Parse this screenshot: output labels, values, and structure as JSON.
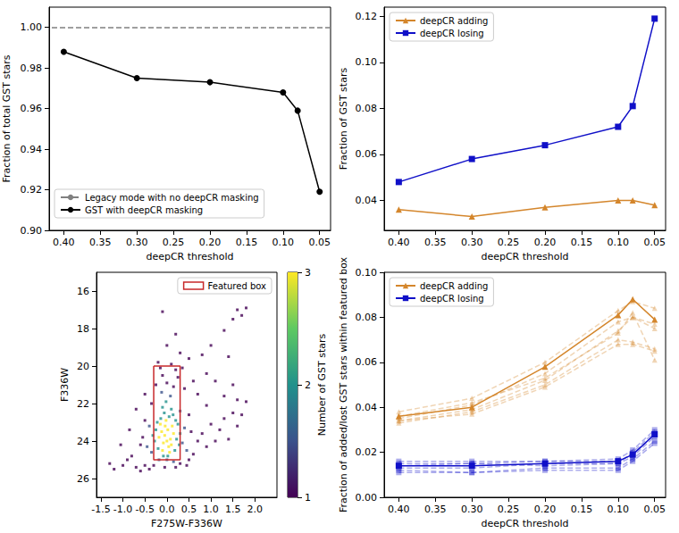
{
  "chart_data": [
    {
      "type": "line",
      "x_label": "deepCR threshold",
      "y_label": "Fraction of total GST stars",
      "x": [
        0.4,
        0.3,
        0.2,
        0.1,
        0.08,
        0.05
      ],
      "xlim": [
        0.42,
        0.035
      ],
      "xticks": [
        {
          "value": 0.4,
          "label": "0.40"
        },
        0.35,
        {
          "value": 0.3,
          "label": "0.30"
        },
        0.25,
        {
          "value": 0.2,
          "label": "0.20"
        },
        0.15,
        {
          "value": 0.1,
          "label": "0.10"
        },
        0.05
      ],
      "ylim": [
        0.9,
        1.01
      ],
      "yticks": [
        {
          "value": 0.9,
          "label": "0.90"
        },
        0.92,
        0.94,
        0.96,
        0.98,
        {
          "value": 1.0,
          "label": "1.00"
        }
      ],
      "grid": false,
      "legend": "lower left",
      "series": [
        {
          "name": "Legacy mode with no deepCR masking",
          "type": "hline",
          "value": 1.0,
          "color": "#808080",
          "line_style": "dashed"
        },
        {
          "name": "GST with deepCR masking",
          "color": "#000000",
          "marker": "circle",
          "line_style": "solid",
          "values": [
            0.988,
            0.975,
            0.973,
            0.968,
            0.959,
            0.919
          ]
        }
      ]
    },
    {
      "type": "line",
      "x_label": "deepCR threshold",
      "y_label": "Fraction of GST stars",
      "x": [
        0.4,
        0.3,
        0.2,
        0.1,
        0.08,
        0.05
      ],
      "xlim": [
        0.42,
        0.035
      ],
      "xticks": [
        {
          "value": 0.4,
          "label": "0.40"
        },
        0.35,
        {
          "value": 0.3,
          "label": "0.30"
        },
        0.25,
        {
          "value": 0.2,
          "label": "0.20"
        },
        0.15,
        {
          "value": 0.1,
          "label": "0.10"
        },
        0.05
      ],
      "ylim": [
        0.027,
        0.124
      ],
      "yticks": [
        0.04,
        0.06,
        0.08,
        {
          "value": 0.1,
          "label": "0.10"
        },
        0.12
      ],
      "grid": false,
      "legend": "upper left",
      "series": [
        {
          "name": "deepCR adding",
          "color": "#d4862c",
          "marker": "triangle",
          "line_style": "solid",
          "values": [
            0.036,
            0.033,
            0.037,
            0.04,
            0.04,
            0.038
          ]
        },
        {
          "name": "deepCR losing",
          "color": "#1010c8",
          "marker": "square",
          "line_style": "solid",
          "values": [
            0.048,
            0.058,
            0.064,
            0.072,
            0.081,
            0.119
          ]
        }
      ]
    },
    {
      "type": "scatter",
      "x_label": "F275W-F336W",
      "y_label": "F336W",
      "xlim": [
        -1.6,
        2.5
      ],
      "xticks": [
        -1.5,
        {
          "value": -1.0,
          "label": "-1.0"
        },
        -0.5,
        {
          "value": 0.0,
          "label": "0.0"
        },
        0.5,
        {
          "value": 1.0,
          "label": "1.0"
        },
        1.5,
        {
          "value": 2.0,
          "label": "2.0"
        }
      ],
      "ylim": [
        27,
        15
      ],
      "yticks": [
        16,
        18,
        20,
        22,
        24,
        26
      ],
      "grid": false,
      "legend": "upper right",
      "colorbar": {
        "label": "Number of GST stars",
        "range": [
          1,
          3
        ],
        "ticks": [
          1,
          2,
          3
        ]
      },
      "cells": [
        [
          -0.12,
          23.5,
          3
        ],
        [
          -0.05,
          23.7,
          3
        ],
        [
          0.02,
          23.4,
          3
        ],
        [
          0.08,
          23.9,
          3
        ],
        [
          -0.08,
          24.1,
          3
        ],
        [
          0.04,
          24.3,
          3
        ],
        [
          -0.15,
          23.1,
          3
        ],
        [
          0.12,
          23.2,
          3
        ],
        [
          -0.02,
          22.9,
          3
        ],
        [
          0.06,
          24.6,
          3
        ],
        [
          -0.1,
          24.5,
          3
        ],
        [
          0.15,
          23.6,
          3
        ],
        [
          -0.18,
          23.8,
          3
        ],
        [
          0.0,
          24.0,
          3
        ],
        [
          0.1,
          24.2,
          3
        ],
        [
          -0.04,
          23.2,
          3
        ],
        [
          -0.25,
          23.4,
          2
        ],
        [
          0.22,
          23.9,
          2
        ],
        [
          -0.2,
          24.4,
          2
        ],
        [
          0.18,
          24.5,
          2
        ],
        [
          -0.06,
          22.5,
          2
        ],
        [
          0.05,
          22.7,
          2
        ],
        [
          -0.14,
          22.8,
          2
        ],
        [
          0.14,
          22.6,
          2
        ],
        [
          0.25,
          23.1,
          2
        ],
        [
          -0.28,
          24.0,
          2
        ],
        [
          0.02,
          24.8,
          2
        ],
        [
          -0.08,
          24.8,
          2
        ],
        [
          0.1,
          22.3,
          2
        ],
        [
          -0.1,
          22.2,
          2
        ],
        [
          0.28,
          24.2,
          2
        ],
        [
          -0.22,
          23.0,
          2
        ],
        [
          0.3,
          23.6,
          2
        ],
        [
          -0.32,
          23.7,
          2
        ],
        [
          0.2,
          22.9,
          2
        ],
        [
          -0.02,
          21.9,
          2
        ],
        [
          0.35,
          24.1,
          1.5
        ],
        [
          -0.35,
          24.6,
          1.5
        ],
        [
          0.4,
          23.3,
          1.5
        ],
        [
          -0.4,
          23.2,
          1.5
        ],
        [
          0.08,
          21.6,
          1.5
        ],
        [
          -0.12,
          21.4,
          1.5
        ],
        [
          0.0,
          25.0,
          1.5
        ],
        [
          0.15,
          25.1,
          1.5
        ],
        [
          -0.18,
          25.0,
          1.5
        ],
        [
          0.45,
          24.5,
          1.5
        ],
        [
          -0.45,
          24.3,
          1.5
        ],
        [
          0.3,
          22.4,
          1.5
        ],
        [
          -1.3,
          25.2,
          1
        ],
        [
          -1.2,
          25.5,
          1
        ],
        [
          -1.0,
          25.3,
          1
        ],
        [
          -0.9,
          25.0,
          1
        ],
        [
          -0.8,
          24.8,
          1
        ],
        [
          -0.7,
          25.4,
          1
        ],
        [
          -0.6,
          24.2,
          1
        ],
        [
          -0.55,
          23.8,
          1
        ],
        [
          -0.5,
          22.9,
          1
        ],
        [
          -0.5,
          25.3,
          1
        ],
        [
          -0.6,
          25.6,
          1
        ],
        [
          -0.4,
          25.5,
          1
        ],
        [
          -0.3,
          25.3,
          1
        ],
        [
          0.3,
          25.2,
          1
        ],
        [
          0.5,
          25.0,
          1
        ],
        [
          0.6,
          24.7,
          1
        ],
        [
          0.55,
          23.5,
          1
        ],
        [
          0.7,
          24.0,
          1
        ],
        [
          0.8,
          23.6,
          1
        ],
        [
          0.9,
          24.3,
          1
        ],
        [
          1.0,
          23.1,
          1
        ],
        [
          1.1,
          24.0,
          1
        ],
        [
          1.2,
          23.4,
          1
        ],
        [
          1.3,
          22.8,
          1
        ],
        [
          1.4,
          23.9,
          1
        ],
        [
          1.5,
          22.5,
          1
        ],
        [
          1.6,
          23.2,
          1
        ],
        [
          1.7,
          22.6,
          1
        ],
        [
          1.8,
          21.9,
          1
        ],
        [
          1.5,
          21.0,
          1
        ],
        [
          1.3,
          21.6,
          1
        ],
        [
          0.9,
          22.1,
          1
        ],
        [
          0.7,
          21.5,
          1
        ],
        [
          0.6,
          20.8,
          1
        ],
        [
          0.4,
          21.2,
          1
        ],
        [
          0.2,
          20.2,
          1
        ],
        [
          -0.1,
          20.5,
          1
        ],
        [
          -0.2,
          19.8,
          1
        ],
        [
          0.1,
          19.9,
          1
        ],
        [
          0.25,
          20.6,
          1
        ],
        [
          -0.25,
          21.0,
          1
        ],
        [
          -0.5,
          21.5,
          1
        ],
        [
          -0.7,
          22.3,
          1
        ],
        [
          -0.85,
          23.4,
          1
        ],
        [
          -1.05,
          24.2,
          1
        ],
        [
          0.0,
          18.9,
          1
        ],
        [
          0.3,
          19.3,
          1
        ],
        [
          0.5,
          19.6,
          1
        ],
        [
          -0.1,
          17.1,
          1
        ],
        [
          0.2,
          18.3,
          1
        ],
        [
          0.8,
          19.4,
          1
        ],
        [
          1.0,
          18.9,
          1
        ],
        [
          1.3,
          18.1,
          1
        ],
        [
          1.5,
          17.5,
          1
        ],
        [
          1.6,
          17.0,
          1
        ],
        [
          1.7,
          17.3,
          1
        ],
        [
          1.8,
          16.9,
          1
        ],
        [
          1.4,
          19.5,
          1
        ],
        [
          0.9,
          20.4,
          1
        ],
        [
          1.1,
          20.8,
          1
        ],
        [
          1.6,
          21.8,
          1
        ],
        [
          0.5,
          22.6,
          1
        ],
        [
          -0.35,
          22.0,
          1
        ],
        [
          0.45,
          25.3,
          1
        ],
        [
          0.2,
          25.4,
          1
        ],
        [
          -0.05,
          25.4,
          1
        ],
        [
          0.0,
          20.9,
          1
        ],
        [
          -0.15,
          20.1,
          1
        ],
        [
          0.15,
          21.1,
          1
        ],
        [
          0.35,
          20.1,
          1
        ]
      ],
      "series": [
        {
          "name": "Featured box",
          "type": "rect",
          "color": "#c8282a",
          "x": [
            -0.3,
            0.3
          ],
          "y": [
            20,
            25
          ]
        }
      ]
    },
    {
      "type": "line",
      "x_label": "deepCR threshold",
      "y_label": "Fraction of added/lost GST stars within featured box",
      "x": [
        0.4,
        0.3,
        0.2,
        0.1,
        0.08,
        0.05
      ],
      "xlim": [
        0.42,
        0.035
      ],
      "xticks": [
        {
          "value": 0.4,
          "label": "0.40"
        },
        0.35,
        {
          "value": 0.3,
          "label": "0.30"
        },
        0.25,
        {
          "value": 0.2,
          "label": "0.20"
        },
        0.15,
        {
          "value": 0.1,
          "label": "0.10"
        },
        0.05
      ],
      "ylim": [
        0,
        0.1
      ],
      "yticks": [
        {
          "value": 0,
          "label": "0.00"
        },
        0.02,
        0.04,
        0.06,
        0.08,
        {
          "value": 0.1,
          "label": "0.10"
        }
      ],
      "grid": false,
      "legend": "upper left",
      "series": [
        {
          "color": "#d4862c",
          "marker": "triangle",
          "line_style": "dashed",
          "values": [
            0.038,
            0.044,
            0.06,
            0.083,
            0.087,
            0.084
          ]
        },
        {
          "color": "#d4862c",
          "marker": "triangle",
          "line_style": "dashed",
          "values": [
            0.035,
            0.041,
            0.055,
            0.078,
            0.08,
            0.077
          ]
        },
        {
          "color": "#d4862c",
          "marker": "triangle",
          "line_style": "dashed",
          "values": [
            0.034,
            0.039,
            0.052,
            0.074,
            0.08,
            0.075
          ]
        },
        {
          "color": "#d4862c",
          "marker": "triangle",
          "line_style": "dashed",
          "values": [
            0.033,
            0.038,
            0.05,
            0.07,
            0.069,
            0.066
          ]
        },
        {
          "color": "#d4862c",
          "marker": "triangle",
          "line_style": "dashed",
          "values": [
            0.036,
            0.042,
            0.053,
            0.073,
            0.082,
            0.061
          ]
        },
        {
          "color": "#d4862c",
          "marker": "triangle",
          "line_style": "dashed",
          "values": [
            0.034,
            0.037,
            0.049,
            0.068,
            0.068,
            0.065
          ]
        },
        {
          "color": "#1010c8",
          "marker": "square",
          "line_style": "dashed",
          "values": [
            0.016,
            0.016,
            0.016,
            0.017,
            0.021,
            0.03
          ]
        },
        {
          "color": "#1010c8",
          "marker": "square",
          "line_style": "dashed",
          "values": [
            0.015,
            0.015,
            0.016,
            0.016,
            0.019,
            0.028
          ]
        },
        {
          "color": "#1010c8",
          "marker": "square",
          "line_style": "dashed",
          "values": [
            0.013,
            0.013,
            0.015,
            0.015,
            0.018,
            0.027
          ]
        },
        {
          "color": "#1010c8",
          "marker": "square",
          "line_style": "dashed",
          "values": [
            0.012,
            0.011,
            0.013,
            0.013,
            0.017,
            0.025
          ]
        },
        {
          "color": "#1010c8",
          "marker": "square",
          "line_style": "dashed",
          "values": [
            0.011,
            0.011,
            0.012,
            0.012,
            0.016,
            0.024
          ]
        },
        {
          "color": "#1010c8",
          "marker": "square",
          "line_style": "dashed",
          "values": [
            0.014,
            0.015,
            0.014,
            0.015,
            0.02,
            0.029
          ]
        },
        {
          "name": "deepCR adding",
          "color": "#d4862c",
          "marker": "triangle",
          "line_style": "solid",
          "values": [
            0.036,
            0.04,
            0.058,
            0.081,
            0.088,
            0.079
          ]
        },
        {
          "name": "deepCR losing",
          "color": "#1010c8",
          "marker": "square",
          "line_style": "solid",
          "values": [
            0.014,
            0.014,
            0.015,
            0.016,
            0.019,
            0.028
          ]
        }
      ]
    }
  ]
}
